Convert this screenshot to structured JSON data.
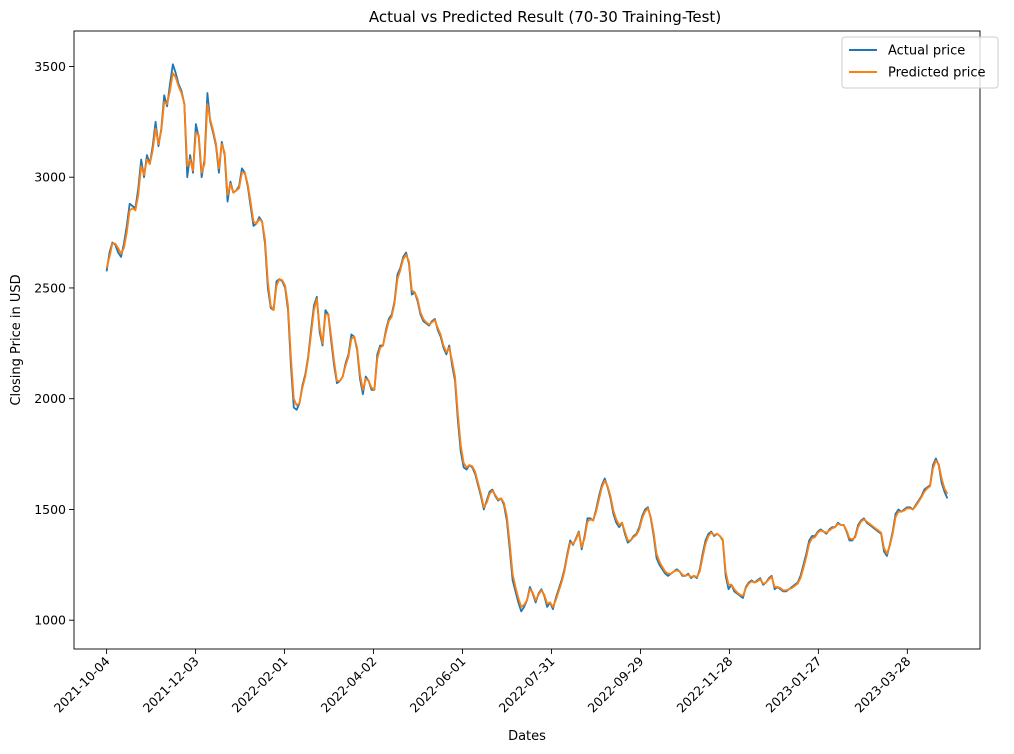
{
  "chart_data": {
    "type": "line",
    "title": "Actual vs Predicted Result (70-30 Training-Test)",
    "xlabel": "Dates",
    "ylabel": "Closing Price in USD",
    "x_start": "2021-10-04",
    "x_end": "2023-04-24",
    "xlim": [
      "2021-09-12",
      "2023-05-16"
    ],
    "ylim": [
      870,
      3660
    ],
    "x_ticks": [
      "2021-10-04",
      "2021-12-03",
      "2022-02-01",
      "2022-04-02",
      "2022-06-01",
      "2022-07-31",
      "2022-09-29",
      "2022-11-28",
      "2023-01-27",
      "2023-03-28"
    ],
    "y_ticks": [
      1000,
      1500,
      2000,
      2500,
      3000,
      3500
    ],
    "grid": false,
    "legend_position": "top-right",
    "series": [
      {
        "name": "Actual price",
        "color": "#1f77b4",
        "values": [
          2575,
          2660,
          2705,
          2695,
          2660,
          2640,
          2700,
          2780,
          2880,
          2870,
          2860,
          2950,
          3080,
          3000,
          3100,
          3060,
          3140,
          3250,
          3140,
          3220,
          3370,
          3320,
          3420,
          3510,
          3470,
          3420,
          3390,
          3330,
          3000,
          3100,
          3020,
          3240,
          3180,
          3000,
          3080,
          3380,
          3250,
          3200,
          3140,
          3020,
          3160,
          3100,
          2890,
          2980,
          2930,
          2940,
          2960,
          3040,
          3020,
          2960,
          2870,
          2780,
          2790,
          2820,
          2800,
          2700,
          2500,
          2410,
          2400,
          2530,
          2540,
          2530,
          2500,
          2400,
          2150,
          1960,
          1950,
          1980,
          2060,
          2110,
          2190,
          2310,
          2420,
          2460,
          2300,
          2240,
          2400,
          2380,
          2260,
          2150,
          2070,
          2080,
          2100,
          2160,
          2200,
          2290,
          2280,
          2220,
          2090,
          2020,
          2100,
          2080,
          2040,
          2040,
          2200,
          2240,
          2240,
          2310,
          2360,
          2380,
          2440,
          2560,
          2590,
          2640,
          2660,
          2610,
          2470,
          2480,
          2440,
          2380,
          2350,
          2340,
          2330,
          2350,
          2360,
          2310,
          2280,
          2230,
          2200,
          2240,
          2150,
          2080,
          1900,
          1760,
          1690,
          1680,
          1700,
          1690,
          1660,
          1610,
          1560,
          1500,
          1540,
          1580,
          1590,
          1560,
          1540,
          1550,
          1520,
          1450,
          1320,
          1180,
          1130,
          1080,
          1040,
          1060,
          1090,
          1150,
          1120,
          1080,
          1120,
          1140,
          1110,
          1060,
          1080,
          1050,
          1100,
          1140,
          1180,
          1230,
          1300,
          1360,
          1340,
          1370,
          1400,
          1320,
          1380,
          1460,
          1460,
          1450,
          1500,
          1560,
          1610,
          1640,
          1600,
          1550,
          1480,
          1440,
          1420,
          1440,
          1390,
          1350,
          1360,
          1380,
          1390,
          1420,
          1470,
          1500,
          1510,
          1460,
          1380,
          1280,
          1250,
          1230,
          1210,
          1200,
          1210,
          1220,
          1230,
          1220,
          1200,
          1200,
          1210,
          1190,
          1200,
          1190,
          1230,
          1300,
          1360,
          1390,
          1400,
          1380,
          1390,
          1380,
          1360,
          1200,
          1140,
          1160,
          1130,
          1120,
          1110,
          1100,
          1150,
          1170,
          1180,
          1170,
          1180,
          1190,
          1160,
          1170,
          1190,
          1200,
          1140,
          1150,
          1140,
          1130,
          1130,
          1140,
          1150,
          1160,
          1170,
          1200,
          1250,
          1300,
          1360,
          1380,
          1380,
          1400,
          1410,
          1400,
          1390,
          1410,
          1420,
          1420,
          1440,
          1430,
          1430,
          1400,
          1360,
          1360,
          1380,
          1430,
          1450,
          1460,
          1440,
          1430,
          1420,
          1410,
          1400,
          1390,
          1310,
          1290,
          1340,
          1400,
          1480,
          1500,
          1490,
          1500,
          1510,
          1510,
          1500,
          1520,
          1540,
          1560,
          1590,
          1600,
          1610,
          1700,
          1730,
          1700,
          1620,
          1580,
          1550
        ]
      },
      {
        "name": "Predicted price",
        "color": "#ff7f0e",
        "values": [
          2590,
          2640,
          2700,
          2700,
          2680,
          2655,
          2680,
          2750,
          2850,
          2860,
          2850,
          2920,
          3050,
          3010,
          3080,
          3060,
          3120,
          3220,
          3150,
          3210,
          3340,
          3330,
          3390,
          3470,
          3450,
          3410,
          3380,
          3330,
          3050,
          3080,
          3030,
          3200,
          3190,
          3020,
          3060,
          3330,
          3260,
          3210,
          3150,
          3040,
          3150,
          3110,
          2920,
          2970,
          2930,
          2940,
          2950,
          3020,
          3020,
          2970,
          2890,
          2800,
          2790,
          2810,
          2800,
          2720,
          2530,
          2420,
          2400,
          2510,
          2540,
          2535,
          2510,
          2420,
          2190,
          2000,
          1970,
          1980,
          2050,
          2100,
          2180,
          2290,
          2400,
          2450,
          2320,
          2250,
          2380,
          2380,
          2280,
          2170,
          2080,
          2080,
          2100,
          2150,
          2190,
          2270,
          2280,
          2230,
          2110,
          2040,
          2090,
          2080,
          2050,
          2040,
          2180,
          2230,
          2240,
          2300,
          2350,
          2370,
          2430,
          2540,
          2580,
          2630,
          2650,
          2620,
          2490,
          2480,
          2450,
          2390,
          2360,
          2345,
          2335,
          2345,
          2355,
          2320,
          2290,
          2240,
          2210,
          2230,
          2170,
          2100,
          1930,
          1790,
          1710,
          1690,
          1700,
          1695,
          1670,
          1620,
          1570,
          1510,
          1530,
          1570,
          1585,
          1565,
          1545,
          1550,
          1530,
          1470,
          1350,
          1210,
          1150,
          1100,
          1060,
          1070,
          1090,
          1140,
          1125,
          1090,
          1115,
          1135,
          1115,
          1075,
          1080,
          1060,
          1090,
          1130,
          1170,
          1220,
          1290,
          1350,
          1345,
          1365,
          1395,
          1330,
          1370,
          1445,
          1455,
          1450,
          1490,
          1545,
          1600,
          1630,
          1605,
          1560,
          1495,
          1455,
          1430,
          1440,
          1400,
          1360,
          1360,
          1375,
          1385,
          1410,
          1460,
          1490,
          1505,
          1465,
          1395,
          1300,
          1265,
          1240,
          1220,
          1210,
          1210,
          1220,
          1225,
          1220,
          1205,
          1200,
          1205,
          1195,
          1200,
          1195,
          1220,
          1285,
          1345,
          1380,
          1395,
          1385,
          1390,
          1380,
          1365,
          1220,
          1160,
          1160,
          1140,
          1125,
          1115,
          1110,
          1145,
          1165,
          1175,
          1170,
          1175,
          1185,
          1165,
          1170,
          1185,
          1195,
          1150,
          1150,
          1145,
          1135,
          1135,
          1140,
          1145,
          1155,
          1165,
          1190,
          1235,
          1285,
          1345,
          1370,
          1375,
          1395,
          1405,
          1400,
          1395,
          1405,
          1415,
          1420,
          1435,
          1430,
          1430,
          1405,
          1370,
          1365,
          1375,
          1420,
          1445,
          1455,
          1445,
          1435,
          1425,
          1415,
          1405,
          1395,
          1325,
          1300,
          1335,
          1390,
          1465,
          1490,
          1490,
          1495,
          1505,
          1505,
          1500,
          1515,
          1535,
          1555,
          1580,
          1595,
          1605,
          1685,
          1720,
          1705,
          1640,
          1595,
          1570
        ]
      }
    ]
  }
}
